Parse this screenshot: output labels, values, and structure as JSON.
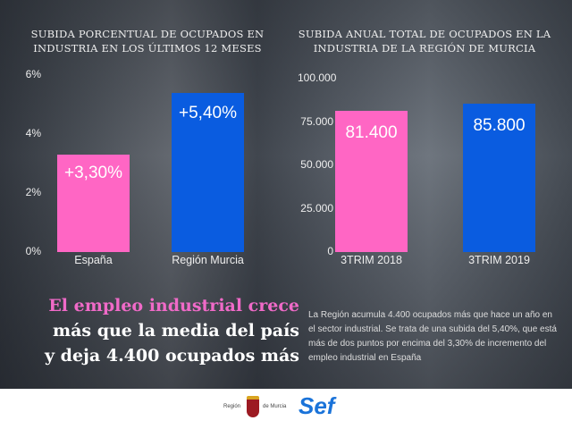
{
  "chart_data": [
    {
      "type": "bar",
      "title": "SUBIDA PORCENTUAL DE OCUPADOS EN INDUSTRIA EN LOS ÚLTIMOS 12 MESES",
      "categories": [
        "España",
        "Región Murcia"
      ],
      "values": [
        3.3,
        5.4
      ],
      "data_labels": [
        "+3,30%",
        "+5,40%"
      ],
      "yticks": [
        "0%",
        "2%",
        "4%",
        "6%"
      ],
      "ylim": [
        0,
        6
      ],
      "colors": [
        "#ff66c4",
        "#0a5ce0"
      ],
      "grid": false
    },
    {
      "type": "bar",
      "title": "SUBIDA ANUAL TOTAL DE OCUPADOS EN LA INDUSTRIA DE LA REGIÓN DE MURCIA",
      "categories": [
        "3TRIM 2018",
        "3TRIM 2019"
      ],
      "values": [
        81400,
        85800
      ],
      "data_labels": [
        "81.400",
        "85.800"
      ],
      "yticks": [
        "0",
        "25.000",
        "50.000",
        "75.000",
        "100.000"
      ],
      "ylim": [
        0,
        100000
      ],
      "colors": [
        "#ff66c4",
        "#0a5ce0"
      ],
      "grid": false
    }
  ],
  "headline": {
    "line1": "El empleo industrial crece",
    "line2": "más que la media del país",
    "line3": "y deja 4.400 ocupados más"
  },
  "paragraph": "La Región acumula 4.400 ocupados más que hace un año en el sector industrial. Se trata de una subida del 5,40%, que está más de dos puntos por encima del 3,30% de incremento del empleo industrial en España",
  "footer": {
    "logo1_left": "Región",
    "logo1_right": "de Murcia",
    "logo2": "Sef",
    "logo2_color": "#1a73d9"
  }
}
